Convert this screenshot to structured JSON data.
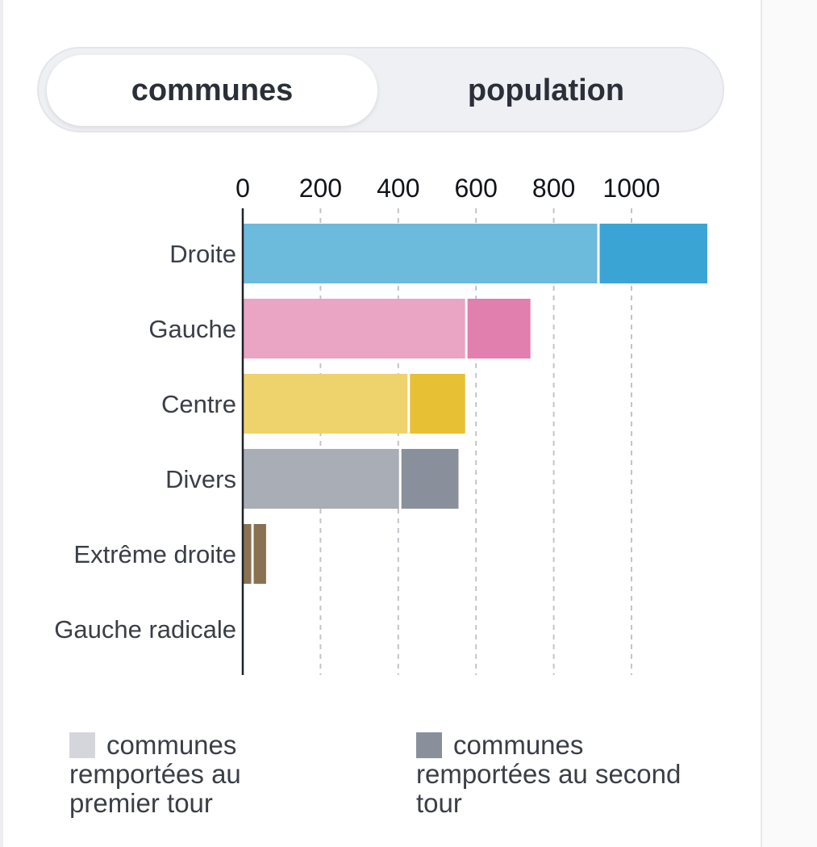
{
  "toggle": {
    "tabs": [
      {
        "label": "communes",
        "active": true
      },
      {
        "label": "population",
        "active": false
      }
    ]
  },
  "chart_data": {
    "type": "bar",
    "orientation": "horizontal",
    "stacked": true,
    "categories": [
      "Droite",
      "Gauche",
      "Centre",
      "Divers",
      "Extrême droite",
      "Gauche radicale"
    ],
    "series": [
      {
        "name": "communes remportées au premier tour",
        "values": [
          915,
          575,
          427,
          405,
          25,
          3
        ]
      },
      {
        "name": "communes remportées au second tour",
        "values": [
          280,
          165,
          145,
          150,
          35,
          2
        ]
      }
    ],
    "colors": {
      "premier": [
        "#6cbadc",
        "#eaa4c4",
        "#eed36c",
        "#a8adb6",
        "#8a7152",
        "#e9a0a0"
      ],
      "second": [
        "#3aa5d4",
        "#e17fae",
        "#e8c033",
        "#8a909b",
        "#8a7152",
        "#d35b5b"
      ]
    },
    "xticks": [
      0,
      200,
      400,
      600,
      800,
      1000
    ],
    "xlim": [
      0,
      1200
    ],
    "grid": true,
    "legend_position": "bottom",
    "legend": [
      {
        "label": "communes remportées au premier tour",
        "color": "#d4d6db"
      },
      {
        "label": "communes remportées au second tour",
        "color": "#8a909b"
      }
    ]
  }
}
